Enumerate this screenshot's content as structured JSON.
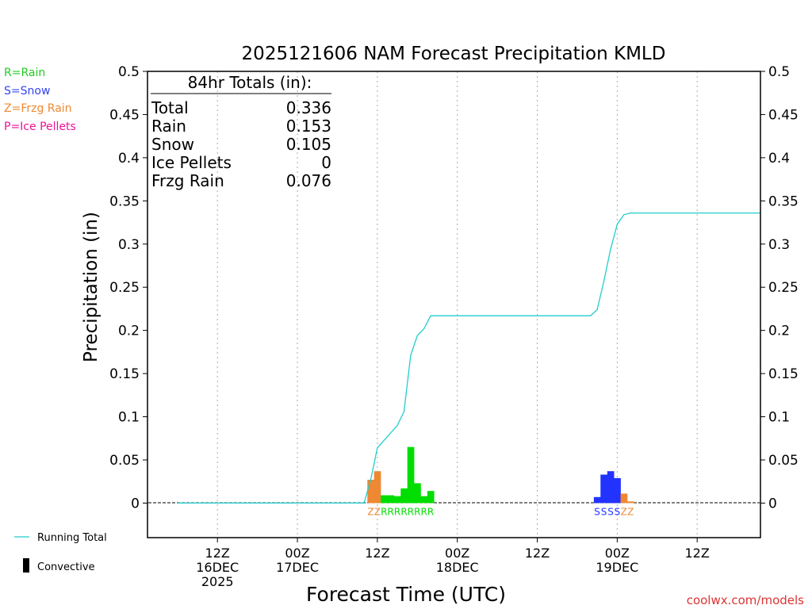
{
  "chart_data": {
    "type": "bar",
    "title": "2025121606 NAM Forecast Precipitation KMLD",
    "xlabel": "Forecast Time (UTC)",
    "ylabel": "Precipitation (in)",
    "ylim": [
      -0.04,
      0.5
    ],
    "xlim_hours": [
      -4.5,
      87.5
    ],
    "yticks": [
      0,
      0.05,
      0.1,
      0.15,
      0.2,
      0.25,
      0.3,
      0.35,
      0.4,
      0.45,
      0.5
    ],
    "ytick_labels": [
      "0",
      "0.05",
      "0.1",
      "0.15",
      "0.2",
      "0.25",
      "0.3",
      "0.35",
      "0.4",
      "0.45",
      "0.5"
    ],
    "xticks": [
      {
        "hour": 6,
        "lines": [
          "12Z",
          "16DEC",
          "2025"
        ]
      },
      {
        "hour": 18,
        "lines": [
          "00Z",
          "17DEC"
        ]
      },
      {
        "hour": 30,
        "lines": [
          "12Z"
        ]
      },
      {
        "hour": 42,
        "lines": [
          "00Z",
          "18DEC"
        ]
      },
      {
        "hour": 54,
        "lines": [
          "12Z"
        ]
      },
      {
        "hour": 66,
        "lines": [
          "00Z",
          "19DEC"
        ]
      },
      {
        "hour": 78,
        "lines": [
          "12Z"
        ]
      }
    ],
    "type_colors": {
      "R": "#00dd00",
      "S": "#2233ff",
      "Z": "#ee8833",
      "P": "#ee1199"
    },
    "bars": [
      {
        "hour": 29,
        "type": "Z",
        "value": 0.027
      },
      {
        "hour": 30,
        "type": "Z",
        "value": 0.037
      },
      {
        "hour": 31,
        "type": "R",
        "value": 0.009
      },
      {
        "hour": 32,
        "type": "R",
        "value": 0.009
      },
      {
        "hour": 33,
        "type": "R",
        "value": 0.008
      },
      {
        "hour": 34,
        "type": "R",
        "value": 0.017
      },
      {
        "hour": 35,
        "type": "R",
        "value": 0.065
      },
      {
        "hour": 36,
        "type": "R",
        "value": 0.023
      },
      {
        "hour": 37,
        "type": "R",
        "value": 0.008
      },
      {
        "hour": 38,
        "type": "R",
        "value": 0.014
      },
      {
        "hour": 63,
        "type": "S",
        "value": 0.007
      },
      {
        "hour": 64,
        "type": "S",
        "value": 0.033
      },
      {
        "hour": 65,
        "type": "S",
        "value": 0.037
      },
      {
        "hour": 66,
        "type": "S",
        "value": 0.029
      },
      {
        "hour": 67,
        "type": "Z",
        "value": 0.011
      },
      {
        "hour": 68,
        "type": "Z",
        "value": 0.002
      }
    ],
    "type_letters": [
      {
        "hour": 29,
        "letter": "Z"
      },
      {
        "hour": 30,
        "letter": "Z"
      },
      {
        "hour": 31,
        "letter": "R"
      },
      {
        "hour": 32,
        "letter": "R"
      },
      {
        "hour": 33,
        "letter": "R"
      },
      {
        "hour": 34,
        "letter": "R"
      },
      {
        "hour": 35,
        "letter": "R"
      },
      {
        "hour": 36,
        "letter": "R"
      },
      {
        "hour": 37,
        "letter": "R"
      },
      {
        "hour": 38,
        "letter": "R"
      },
      {
        "hour": 63,
        "letter": "S"
      },
      {
        "hour": 64,
        "letter": "S"
      },
      {
        "hour": 65,
        "letter": "S"
      },
      {
        "hour": 66,
        "letter": "S"
      },
      {
        "hour": 67,
        "letter": "Z"
      },
      {
        "hour": 68,
        "letter": "Z"
      }
    ],
    "running_total": [
      {
        "hour": 0,
        "value": 0
      },
      {
        "hour": 28,
        "value": 0
      },
      {
        "hour": 29,
        "value": 0.027
      },
      {
        "hour": 30,
        "value": 0.064
      },
      {
        "hour": 33,
        "value": 0.09
      },
      {
        "hour": 34,
        "value": 0.106
      },
      {
        "hour": 35,
        "value": 0.171
      },
      {
        "hour": 36,
        "value": 0.194
      },
      {
        "hour": 37,
        "value": 0.202
      },
      {
        "hour": 38,
        "value": 0.217
      },
      {
        "hour": 62,
        "value": 0.217
      },
      {
        "hour": 63,
        "value": 0.224
      },
      {
        "hour": 64,
        "value": 0.257
      },
      {
        "hour": 65,
        "value": 0.294
      },
      {
        "hour": 66,
        "value": 0.323
      },
      {
        "hour": 67,
        "value": 0.334
      },
      {
        "hour": 68,
        "value": 0.336
      },
      {
        "hour": 87.5,
        "value": 0.336
      }
    ],
    "running_total_color": "#22cccc",
    "totals_box": {
      "heading": "84hr Totals (in):",
      "rows": [
        {
          "label": "Total",
          "value": "0.336"
        },
        {
          "label": "Rain",
          "value": "0.153"
        },
        {
          "label": "Snow",
          "value": "0.105"
        },
        {
          "label": "Ice Pellets",
          "value": "0"
        },
        {
          "label": "Frzg Rain",
          "value": "0.076"
        }
      ]
    },
    "type_legend": [
      {
        "text": "R=Rain",
        "color": "#22cc22"
      },
      {
        "text": "S=Snow",
        "color": "#3344ee"
      },
      {
        "text": "Z=Frzg Rain",
        "color": "#ee8833"
      },
      {
        "text": "P=Ice Pellets",
        "color": "#ee1199"
      }
    ],
    "line_legend": {
      "running_total": "Running Total",
      "convective": "Convective"
    },
    "credit": "coolwx.com/models",
    "credit_color": "#dd3333"
  }
}
